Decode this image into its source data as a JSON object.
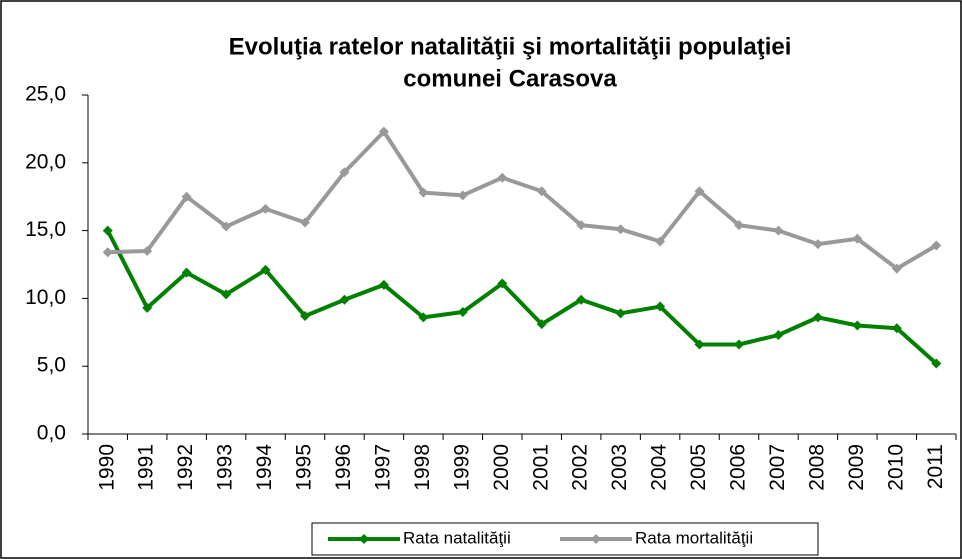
{
  "chart_data": {
    "type": "line",
    "title": [
      "Evoluţia ratelor natalităţii şi mortalităţii populaţiei",
      "comunei Carasova"
    ],
    "categories": [
      "1990",
      "1991",
      "1992",
      "1993",
      "1994",
      "1995",
      "1996",
      "1997",
      "1998",
      "1999",
      "2000",
      "2001",
      "2002",
      "2003",
      "2004",
      "2005",
      "2006",
      "2007",
      "2008",
      "2009",
      "2010",
      "2011"
    ],
    "series": [
      {
        "name": "Rata natalităţii",
        "color": "#008000",
        "values": [
          15.0,
          9.3,
          11.9,
          10.3,
          12.1,
          8.7,
          9.9,
          11.0,
          8.6,
          9.0,
          11.1,
          8.1,
          9.9,
          8.9,
          9.4,
          6.6,
          6.6,
          7.3,
          8.6,
          8.0,
          7.8,
          5.2
        ]
      },
      {
        "name": "Rata mortalităţii",
        "color": "#999999",
        "values": [
          13.4,
          13.5,
          17.5,
          15.3,
          16.6,
          15.6,
          19.3,
          22.3,
          17.8,
          17.6,
          18.9,
          17.9,
          15.4,
          15.1,
          14.2,
          17.9,
          15.4,
          15.0,
          14.0,
          14.4,
          12.2,
          13.9
        ]
      }
    ],
    "ylim": [
      0,
      25
    ],
    "yticks": [
      {
        "value": 0,
        "label": "0,0"
      },
      {
        "value": 5,
        "label": "5,0"
      },
      {
        "value": 10,
        "label": "10,0"
      },
      {
        "value": 15,
        "label": "15,0"
      },
      {
        "value": 20,
        "label": "20,0"
      },
      {
        "value": 25,
        "label": "25,0"
      }
    ],
    "legend": "bottom"
  }
}
